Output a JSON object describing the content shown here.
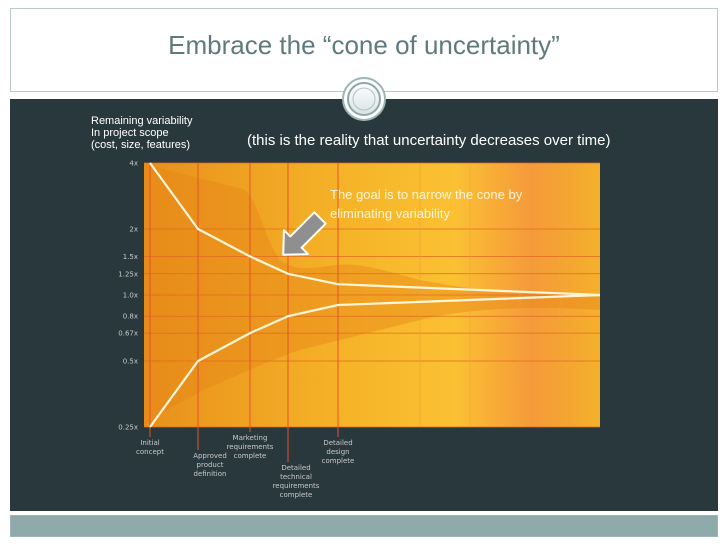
{
  "slide": {
    "title": "Embrace the “cone of uncertainty”",
    "side_label": [
      "Remaining variability",
      "In project scope",
      "(cost, size,  features)"
    ],
    "reality_note": "(this is the reality that uncertainty decreases over time)",
    "goal_note": [
      "The goal is to narrow the cone by",
      "eliminating variability"
    ],
    "icons": {
      "divider": "ring-circle-icon",
      "pointer": "arrow-icon"
    },
    "colors": {
      "accent": "#f6a81f",
      "dark": "#29383c",
      "title": "#5f7a7c",
      "line": "#fff6d8",
      "phase": "#e8502d"
    }
  },
  "chart_data": {
    "type": "line",
    "title": "",
    "xlabel": "",
    "ylabel": "",
    "y_scale": "log",
    "y_ticks": [
      {
        "value": 4,
        "label": "4x"
      },
      {
        "value": 2,
        "label": "2x"
      },
      {
        "value": 1.5,
        "label": "1.5x"
      },
      {
        "value": 1.25,
        "label": "1.25x"
      },
      {
        "value": 1.0,
        "label": "1.0x"
      },
      {
        "value": 0.8,
        "label": "0.8x"
      },
      {
        "value": 0.67,
        "label": "0.67x"
      },
      {
        "value": 0.5,
        "label": "0.5x"
      },
      {
        "value": 0.25,
        "label": "0.25x"
      }
    ],
    "milestones": [
      {
        "label": [
          "Initial",
          "concept"
        ],
        "position": 0
      },
      {
        "label": [
          "Approved",
          "product",
          "definition"
        ],
        "position": 1
      },
      {
        "label": [
          "Marketing",
          "requirements",
          "complete"
        ],
        "position": 2
      },
      {
        "label": [
          "Detailed",
          "technical",
          "requirements",
          "complete"
        ],
        "position": 3
      },
      {
        "label": [
          "Detailed",
          "design",
          "complete"
        ],
        "position": 4
      }
    ],
    "series": [
      {
        "values": [
          4,
          2,
          1.5,
          1.25,
          1.12,
          1.0
        ],
        "x": [
          0,
          1,
          2,
          3,
          4,
          10
        ]
      },
      {
        "values": [
          0.25,
          0.5,
          0.67,
          0.8,
          0.9,
          1.0
        ],
        "x": [
          0,
          1,
          2,
          3,
          4,
          10
        ]
      }
    ]
  }
}
